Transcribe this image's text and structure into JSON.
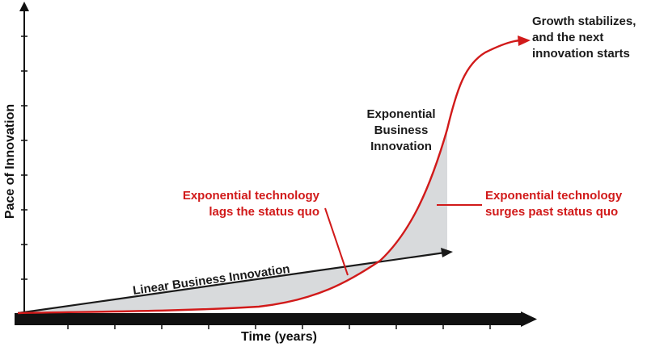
{
  "axes": {
    "y_title": "Pace of Innovation",
    "x_title": "Time (years)"
  },
  "curves": {
    "linear_label": "Linear Business Innovation",
    "exponential_label": [
      "Exponential",
      "Business",
      "Innovation"
    ]
  },
  "annotations": {
    "lags": [
      "Exponential technology",
      "lags the status quo"
    ],
    "surges": [
      "Exponential technology",
      "surges past status quo"
    ],
    "stabilizes": [
      "Growth stabilizes,",
      "and the next",
      "innovation starts"
    ]
  },
  "colors": {
    "exponential": "#d11a1a",
    "linear": "#1a1a1a",
    "gap_fill": "#d8dadc",
    "axis": "#111111"
  }
}
